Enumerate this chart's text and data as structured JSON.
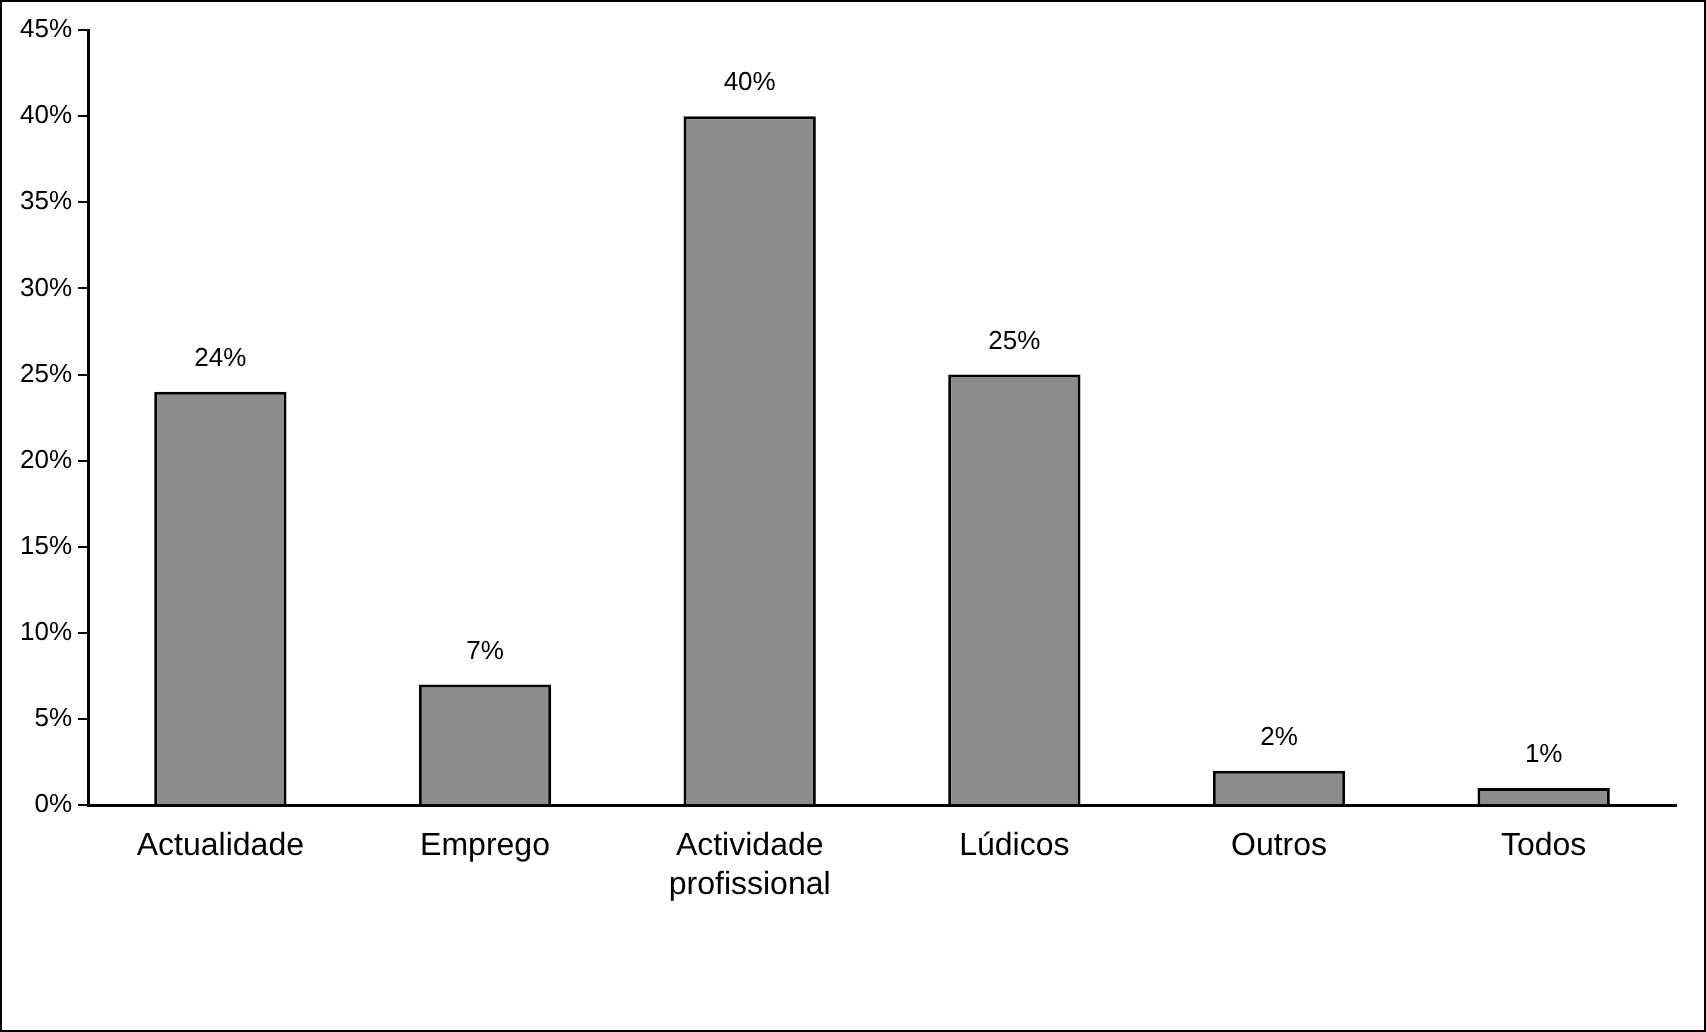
{
  "chart_data": {
    "type": "bar",
    "categories": [
      "Actualidade",
      "Emprego",
      "Actividade profissional",
      "Lúdicos",
      "Outros",
      "Todos"
    ],
    "values": [
      24,
      7,
      40,
      25,
      2,
      1
    ],
    "value_labels": [
      "24%",
      "7%",
      "40%",
      "25%",
      "2%",
      "1%"
    ],
    "color": "#8c8c8c",
    "ylim": [
      0,
      45
    ],
    "yticks": [
      {
        "value": 0,
        "label": "0%"
      },
      {
        "value": 5,
        "label": "5%"
      },
      {
        "value": 10,
        "label": "10%"
      },
      {
        "value": 15,
        "label": "15%"
      },
      {
        "value": 20,
        "label": "20%"
      },
      {
        "value": 25,
        "label": "25%"
      },
      {
        "value": 30,
        "label": "30%"
      },
      {
        "value": 35,
        "label": "35%"
      },
      {
        "value": 40,
        "label": "40%"
      },
      {
        "value": 45,
        "label": "45%"
      }
    ],
    "grid": false,
    "legend": false
  }
}
